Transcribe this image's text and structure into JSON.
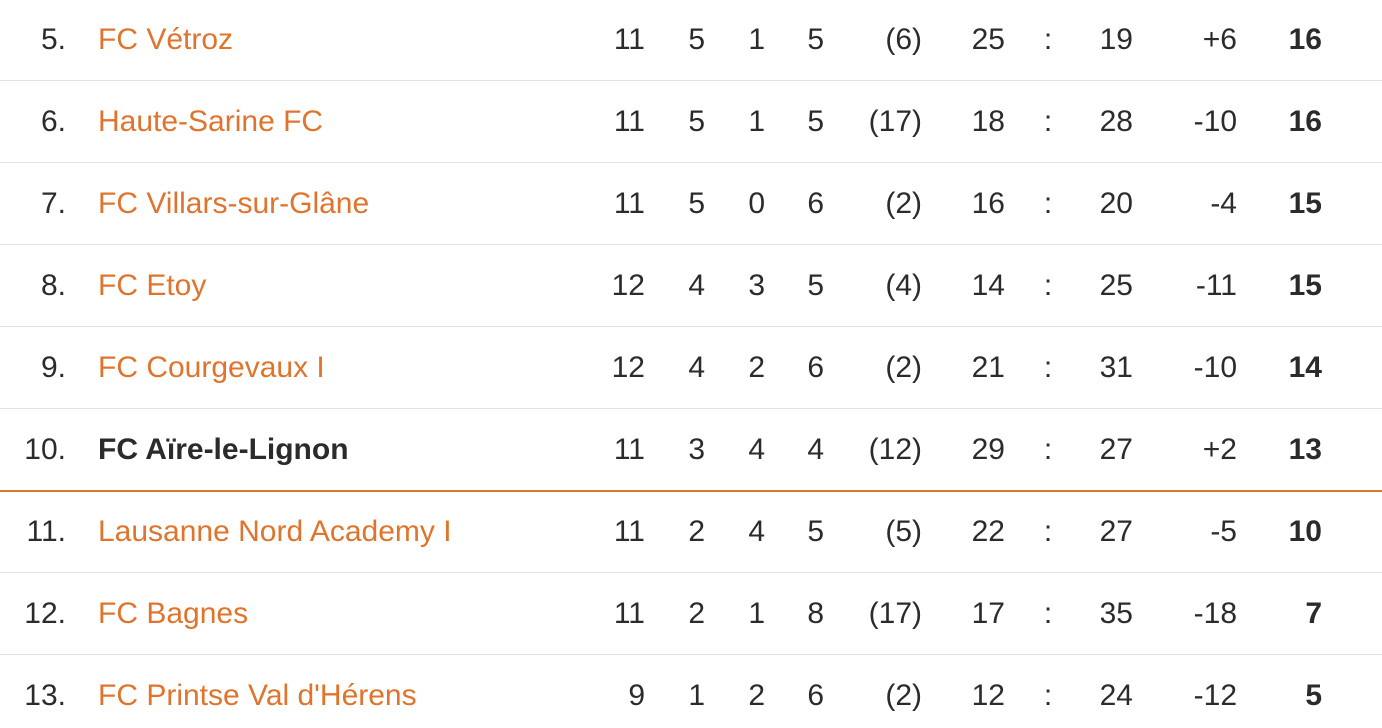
{
  "table": {
    "rows": [
      [
        "5.",
        "FC Vétroz",
        "11",
        "5",
        "1",
        "5",
        "(6)",
        "25",
        ":",
        "19",
        "+6",
        "16"
      ],
      [
        "6.",
        "Haute-Sarine FC",
        "11",
        "5",
        "1",
        "5",
        "(17)",
        "18",
        ":",
        "28",
        "-10",
        "16"
      ],
      [
        "7.",
        "FC Villars-sur-Glâne",
        "11",
        "5",
        "0",
        "6",
        "(2)",
        "16",
        ":",
        "20",
        "-4",
        "15"
      ],
      [
        "8.",
        "FC Etoy",
        "12",
        "4",
        "3",
        "5",
        "(4)",
        "14",
        ":",
        "25",
        "-11",
        "15"
      ],
      [
        "9.",
        "FC Courgevaux I",
        "12",
        "4",
        "2",
        "6",
        "(2)",
        "21",
        ":",
        "31",
        "-10",
        "14"
      ],
      [
        "10.",
        "FC Aïre-le-Lignon",
        "11",
        "3",
        "4",
        "4",
        "(12)",
        "29",
        ":",
        "27",
        "+2",
        "13"
      ],
      [
        "11.",
        "Lausanne Nord Academy I",
        "11",
        "2",
        "4",
        "5",
        "(5)",
        "22",
        ":",
        "27",
        "-5",
        "10"
      ],
      [
        "12.",
        "FC Bagnes",
        "11",
        "2",
        "1",
        "8",
        "(17)",
        "17",
        ":",
        "35",
        "-18",
        "7"
      ],
      [
        "13.",
        "FC Printse Val d'Hérens",
        "9",
        "1",
        "2",
        "6",
        "(2)",
        "12",
        ":",
        "24",
        "-12",
        "5"
      ]
    ]
  }
}
